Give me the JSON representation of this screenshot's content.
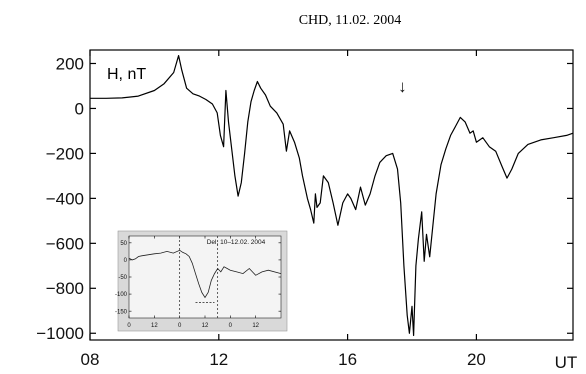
{
  "chart_data": [
    {
      "type": "line",
      "title": "CHD, 11.02. 2004",
      "quantity_label": "H, nT",
      "x_unit_label": "UT",
      "xlim": [
        8,
        23
      ],
      "ylim": [
        -1030,
        260
      ],
      "x_ticks": [
        8,
        12,
        16,
        20
      ],
      "x_tick_labels": [
        "08",
        "12",
        "16",
        "20"
      ],
      "y_ticks": [
        200,
        0,
        -200,
        -400,
        -600,
        -800,
        -1000
      ],
      "y_tick_labels": [
        "200",
        "0",
        "−200",
        "−400",
        "−600",
        "−800",
        "−1000"
      ],
      "grid": false,
      "arrow_annotation": {
        "x": 17.7,
        "symbol": "↓"
      },
      "series": [
        {
          "points": [
            [
              8.0,
              45
            ],
            [
              8.5,
              45
            ],
            [
              9.0,
              47
            ],
            [
              9.5,
              55
            ],
            [
              10.0,
              80
            ],
            [
              10.3,
              110
            ],
            [
              10.6,
              160
            ],
            [
              10.75,
              235
            ],
            [
              10.85,
              170
            ],
            [
              11.0,
              90
            ],
            [
              11.2,
              65
            ],
            [
              11.4,
              55
            ],
            [
              11.6,
              40
            ],
            [
              11.8,
              20
            ],
            [
              11.95,
              -20
            ],
            [
              12.05,
              -120
            ],
            [
              12.15,
              -170
            ],
            [
              12.22,
              80
            ],
            [
              12.3,
              -60
            ],
            [
              12.4,
              -180
            ],
            [
              12.5,
              -300
            ],
            [
              12.6,
              -390
            ],
            [
              12.7,
              -330
            ],
            [
              12.8,
              -200
            ],
            [
              12.9,
              -60
            ],
            [
              13.0,
              30
            ],
            [
              13.1,
              80
            ],
            [
              13.2,
              120
            ],
            [
              13.3,
              90
            ],
            [
              13.45,
              60
            ],
            [
              13.6,
              10
            ],
            [
              13.8,
              -20
            ],
            [
              14.0,
              -70
            ],
            [
              14.1,
              -190
            ],
            [
              14.2,
              -100
            ],
            [
              14.35,
              -150
            ],
            [
              14.5,
              -220
            ],
            [
              14.6,
              -300
            ],
            [
              14.75,
              -400
            ],
            [
              14.85,
              -450
            ],
            [
              14.95,
              -510
            ],
            [
              15.0,
              -380
            ],
            [
              15.05,
              -440
            ],
            [
              15.15,
              -420
            ],
            [
              15.25,
              -300
            ],
            [
              15.4,
              -330
            ],
            [
              15.55,
              -420
            ],
            [
              15.7,
              -520
            ],
            [
              15.85,
              -420
            ],
            [
              16.0,
              -380
            ],
            [
              16.1,
              -400
            ],
            [
              16.25,
              -450
            ],
            [
              16.4,
              -350
            ],
            [
              16.55,
              -430
            ],
            [
              16.7,
              -380
            ],
            [
              16.85,
              -300
            ],
            [
              17.0,
              -240
            ],
            [
              17.2,
              -210
            ],
            [
              17.4,
              -200
            ],
            [
              17.55,
              -270
            ],
            [
              17.65,
              -420
            ],
            [
              17.75,
              -700
            ],
            [
              17.85,
              -920
            ],
            [
              17.92,
              -1000
            ],
            [
              18.0,
              -880
            ],
            [
              18.05,
              -1010
            ],
            [
              18.12,
              -700
            ],
            [
              18.2,
              -580
            ],
            [
              18.3,
              -460
            ],
            [
              18.38,
              -680
            ],
            [
              18.45,
              -560
            ],
            [
              18.55,
              -660
            ],
            [
              18.65,
              -520
            ],
            [
              18.75,
              -380
            ],
            [
              18.9,
              -250
            ],
            [
              19.05,
              -180
            ],
            [
              19.2,
              -120
            ],
            [
              19.35,
              -80
            ],
            [
              19.5,
              -40
            ],
            [
              19.65,
              -60
            ],
            [
              19.8,
              -110
            ],
            [
              19.9,
              -100
            ],
            [
              20.0,
              -150
            ],
            [
              20.2,
              -130
            ],
            [
              20.4,
              -170
            ],
            [
              20.6,
              -190
            ],
            [
              20.8,
              -260
            ],
            [
              20.95,
              -310
            ],
            [
              21.1,
              -270
            ],
            [
              21.3,
              -200
            ],
            [
              21.6,
              -160
            ],
            [
              22.0,
              -140
            ],
            [
              22.4,
              -130
            ],
            [
              22.8,
              -120
            ],
            [
              23.0,
              -110
            ]
          ]
        }
      ]
    },
    {
      "type": "line",
      "title": "Del, 10–12.02. 2004",
      "xlim": [
        0,
        24
      ],
      "ylim": [
        -170,
        70
      ],
      "x_ticks": [
        0,
        4,
        8,
        12,
        16,
        20
      ],
      "x_tick_labels": [
        "0",
        "12",
        "0",
        "12",
        "0",
        "12"
      ],
      "y_ticks": [
        50,
        0,
        -50,
        -100,
        -150
      ],
      "y_tick_labels": [
        "50",
        "0",
        "-50",
        "-100",
        "-150"
      ],
      "dashed_vertical_lines_x": [
        8,
        14
      ],
      "dashed_horizontal_segment": {
        "y": -125,
        "x_from": 10.5,
        "x_to": 13.5
      },
      "grid": false,
      "series": [
        {
          "points": [
            [
              0.0,
              5
            ],
            [
              0.5,
              0
            ],
            [
              1.0,
              3
            ],
            [
              1.5,
              10
            ],
            [
              2.0,
              12
            ],
            [
              3.0,
              15
            ],
            [
              4.0,
              18
            ],
            [
              5.0,
              20
            ],
            [
              6.0,
              25
            ],
            [
              7.0,
              20
            ],
            [
              8.0,
              28
            ],
            [
              8.5,
              22
            ],
            [
              9.0,
              18
            ],
            [
              9.5,
              10
            ],
            [
              10.0,
              -10
            ],
            [
              10.5,
              -40
            ],
            [
              11.0,
              -70
            ],
            [
              11.5,
              -95
            ],
            [
              12.0,
              -110
            ],
            [
              12.5,
              -95
            ],
            [
              13.0,
              -60
            ],
            [
              13.5,
              -40
            ],
            [
              14.0,
              -25
            ],
            [
              14.5,
              -35
            ],
            [
              15.0,
              -20
            ],
            [
              15.5,
              -25
            ],
            [
              16.0,
              -30
            ],
            [
              17.0,
              -35
            ],
            [
              18.0,
              -40
            ],
            [
              19.0,
              -25
            ],
            [
              20.0,
              -45
            ],
            [
              21.0,
              -35
            ],
            [
              22.0,
              -30
            ],
            [
              24.0,
              -40
            ]
          ]
        }
      ]
    }
  ]
}
